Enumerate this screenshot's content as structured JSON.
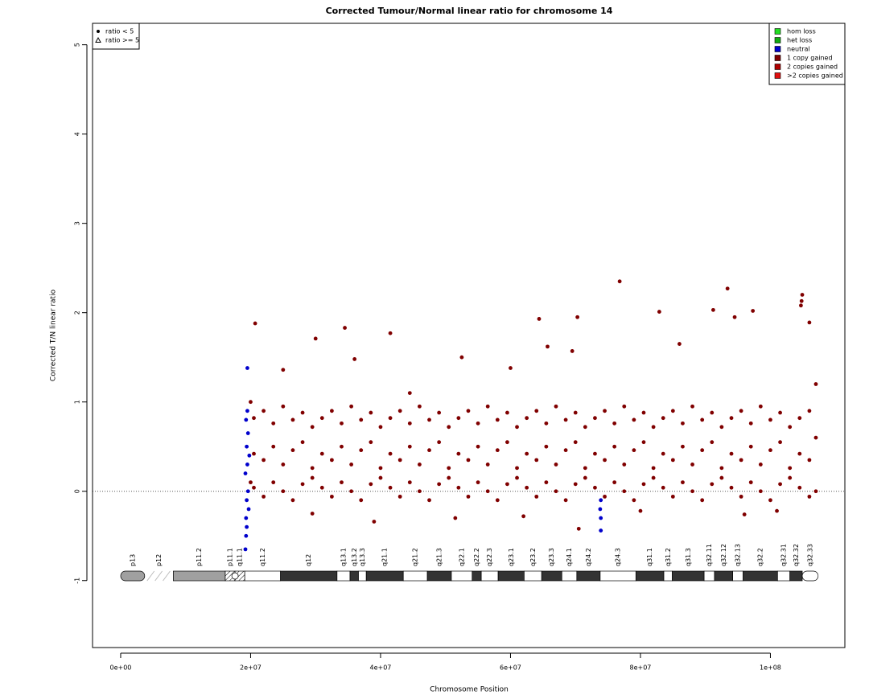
{
  "chart_data": {
    "type": "scatter",
    "title": "Corrected Tumour/Normal linear ratio for chromosome  14",
    "x_label": "Chromosome Position",
    "y_label": "Corrected T/N linear ratio",
    "xlim": [
      -4330000,
      111460000
    ],
    "ylim": [
      -1.75,
      5.24
    ],
    "xticks": [
      {
        "value": 0,
        "label": "0e+00"
      },
      {
        "value": 20000000,
        "label": "2e+07"
      },
      {
        "value": 40000000,
        "label": "4e+07"
      },
      {
        "value": 60000000,
        "label": "6e+07"
      },
      {
        "value": 80000000,
        "label": "8e+07"
      },
      {
        "value": 100000000,
        "label": "1e+08"
      }
    ],
    "yticks": [
      -1,
      0,
      1,
      2,
      3,
      4,
      5
    ],
    "reference_line": 0,
    "markers": [
      {
        "label": "ratio < 5",
        "shape": "circle"
      },
      {
        "label": "ratio >= 5",
        "shape": "triangle"
      }
    ],
    "series": [
      {
        "name": "hom loss",
        "color": "#22dd22",
        "x": [],
        "values": []
      },
      {
        "name": "het loss",
        "color": "#11aa11",
        "x": [],
        "values": []
      },
      {
        "name": "neutral",
        "color": "#0000cc",
        "x": [
          19500000.0,
          19300000.0,
          19400000.0,
          19200000.0,
          19400000.0,
          19300000.0,
          19400000.0,
          19200000.0,
          19600000.0,
          19500000.0,
          19700000.0,
          19600000.0,
          19800000.0,
          19300000.0,
          19500000.0,
          73900000.0,
          73900000.0,
          73800000.0,
          73900000.0
        ],
        "values": [
          1.38,
          0.8,
          0.5,
          0.2,
          -0.1,
          -0.3,
          -0.4,
          -0.65,
          0.65,
          0.3,
          -0.2,
          0,
          0.4,
          -0.5,
          0.9,
          -0.44,
          -0.3,
          -0.2,
          -0.1
        ]
      },
      {
        "name": "1 copy gained",
        "color": "#800000",
        "x": [
          20700000.0,
          30000000.0,
          34500000.0,
          41500000.0,
          44500000.0,
          52500000.0,
          64400000.0,
          70300000.0,
          76800000.0,
          82900000.0,
          91200000.0,
          93400000.0,
          94500000.0,
          97300000.0,
          104900000.0,
          104800000.0,
          104700000.0,
          106000000.0,
          65700000.0,
          69500000.0,
          36000000.0,
          60000000.0,
          25000000.0,
          86000000.0,
          29500000.0,
          39000000.0,
          70500000.0,
          51500000.0,
          62000000.0,
          80000000.0,
          96000000.0,
          101000000.0,
          107000000.0,
          107000000.0,
          107000000.0,
          20000000.0,
          20000000.0,
          20500000.0,
          20500000.0,
          20500000.0,
          22000000.0,
          22000000.0,
          22000000.0,
          23500000.0,
          23500000.0,
          23500000.0,
          25000000.0,
          25000000.0,
          25000000.0,
          26500000.0,
          26500000.0,
          26500000.0,
          28000000.0,
          28000000.0,
          28000000.0,
          29500000.0,
          29500000.0,
          29500000.0,
          31000000.0,
          31000000.0,
          31000000.0,
          32500000.0,
          32500000.0,
          32500000.0,
          34000000.0,
          34000000.0,
          34000000.0,
          35500000.0,
          35500000.0,
          35500000.0,
          37000000.0,
          37000000.0,
          37000000.0,
          38500000.0,
          38500000.0,
          38500000.0,
          40000000.0,
          40000000.0,
          40000000.0,
          41500000.0,
          41500000.0,
          41500000.0,
          43000000.0,
          43000000.0,
          43000000.0,
          44500000.0,
          44500000.0,
          44500000.0,
          46000000.0,
          46000000.0,
          46000000.0,
          47500000.0,
          47500000.0,
          47500000.0,
          49000000.0,
          49000000.0,
          49000000.0,
          50500000.0,
          50500000.0,
          50500000.0,
          52000000.0,
          52000000.0,
          52000000.0,
          53500000.0,
          53500000.0,
          53500000.0,
          55000000.0,
          55000000.0,
          55000000.0,
          56500000.0,
          56500000.0,
          56500000.0,
          58000000.0,
          58000000.0,
          58000000.0,
          59500000.0,
          59500000.0,
          59500000.0,
          61000000.0,
          61000000.0,
          61000000.0,
          62500000.0,
          62500000.0,
          62500000.0,
          64000000.0,
          64000000.0,
          64000000.0,
          65500000.0,
          65500000.0,
          65500000.0,
          67000000.0,
          67000000.0,
          67000000.0,
          68500000.0,
          68500000.0,
          68500000.0,
          70000000.0,
          70000000.0,
          70000000.0,
          71500000.0,
          71500000.0,
          71500000.0,
          73000000.0,
          73000000.0,
          73000000.0,
          74500000.0,
          74500000.0,
          74500000.0,
          76000000.0,
          76000000.0,
          76000000.0,
          77500000.0,
          77500000.0,
          77500000.0,
          79000000.0,
          79000000.0,
          79000000.0,
          80500000.0,
          80500000.0,
          80500000.0,
          82000000.0,
          82000000.0,
          82000000.0,
          83500000.0,
          83500000.0,
          83500000.0,
          85000000.0,
          85000000.0,
          85000000.0,
          86500000.0,
          86500000.0,
          86500000.0,
          88000000.0,
          88000000.0,
          88000000.0,
          89500000.0,
          89500000.0,
          89500000.0,
          91000000.0,
          91000000.0,
          91000000.0,
          92500000.0,
          92500000.0,
          92500000.0,
          94000000.0,
          94000000.0,
          94000000.0,
          95500000.0,
          95500000.0,
          95500000.0,
          97000000.0,
          97000000.0,
          97000000.0,
          98500000.0,
          98500000.0,
          98500000.0,
          100000000.0,
          100000000.0,
          100000000.0,
          101500000.0,
          101500000.0,
          101500000.0,
          103000000.0,
          103000000.0,
          103000000.0,
          104500000.0,
          104500000.0,
          104500000.0,
          106000000.0,
          106000000.0,
          106000000.0
        ],
        "values": [
          1.88,
          1.71,
          1.83,
          1.77,
          1.1,
          1.5,
          1.93,
          1.95,
          2.35,
          2.01,
          2.03,
          2.27,
          1.95,
          2.02,
          2.2,
          2.13,
          2.08,
          1.89,
          1.62,
          1.57,
          1.48,
          1.38,
          1.36,
          1.65,
          -0.25,
          -0.34,
          -0.42,
          -0.3,
          -0.28,
          -0.22,
          -0.26,
          -0.22,
          1.2,
          0,
          0.6,
          1.0,
          0.1,
          0.82,
          0.42,
          0.04,
          0.9,
          0.35,
          -0.06,
          0.76,
          0.5,
          0.1,
          0.95,
          0.3,
          0,
          0.8,
          0.46,
          -0.1,
          0.88,
          0.55,
          0.08,
          0.72,
          0.26,
          0.15,
          0.82,
          0.42,
          0.04,
          0.9,
          0.35,
          -0.06,
          0.76,
          0.5,
          0.1,
          0.95,
          0.3,
          0,
          0.8,
          0.46,
          -0.1,
          0.88,
          0.55,
          0.08,
          0.72,
          0.26,
          0.15,
          0.82,
          0.42,
          0.04,
          0.9,
          0.35,
          -0.06,
          0.76,
          0.5,
          0.1,
          0.95,
          0.3,
          0,
          0.8,
          0.46,
          -0.1,
          0.88,
          0.55,
          0.08,
          0.72,
          0.26,
          0.15,
          0.82,
          0.42,
          0.04,
          0.9,
          0.35,
          -0.06,
          0.76,
          0.5,
          0.1,
          0.95,
          0.3,
          0,
          0.8,
          0.46,
          -0.1,
          0.88,
          0.55,
          0.08,
          0.72,
          0.26,
          0.15,
          0.82,
          0.42,
          0.04,
          0.9,
          0.35,
          -0.06,
          0.76,
          0.5,
          0.1,
          0.95,
          0.3,
          0,
          0.8,
          0.46,
          -0.1,
          0.88,
          0.55,
          0.08,
          0.72,
          0.26,
          0.15,
          0.82,
          0.42,
          0.04,
          0.9,
          0.35,
          -0.06,
          0.76,
          0.5,
          0.1,
          0.95,
          0.3,
          0,
          0.8,
          0.46,
          -0.1,
          0.88,
          0.55,
          0.08,
          0.72,
          0.26,
          0.15,
          0.82,
          0.42,
          0.04,
          0.9,
          0.35,
          -0.06,
          0.76,
          0.5,
          0.1,
          0.95,
          0.3,
          0,
          0.8,
          0.46,
          -0.1,
          0.88,
          0.55,
          0.08,
          0.72,
          0.26,
          0.15,
          0.82,
          0.42,
          0.04,
          0.9,
          0.35,
          -0.06,
          0.76,
          0.5,
          0.1,
          0.95,
          0.3,
          0,
          0.8,
          0.46,
          -0.1,
          0.88,
          0.55,
          0.08,
          0.72,
          0.26,
          0.15,
          0.82,
          0.42,
          0.04,
          0.9,
          0.35,
          -0.06
        ]
      },
      {
        "name": "2 copies gained",
        "color": "#b00000",
        "x": [],
        "values": []
      },
      {
        "name": ">2 copies gained",
        "color": "#e01010",
        "x": [],
        "values": []
      }
    ],
    "ideogram": {
      "bands": [
        {
          "label": "p13",
          "start": 0,
          "end": 3700000,
          "stain": "gvar"
        },
        {
          "label": "p12",
          "start": 3700000,
          "end": 8100000,
          "stain": "stalk"
        },
        {
          "label": "p11.2",
          "start": 8100000,
          "end": 16100000,
          "stain": "gvar"
        },
        {
          "label": "p11.1",
          "start": 16100000,
          "end": 17600000,
          "stain": "acen"
        },
        {
          "label": "q11.1",
          "start": 17600000,
          "end": 19100000,
          "stain": "acen"
        },
        {
          "label": "q11.2",
          "start": 19100000,
          "end": 24600000,
          "stain": "gneg"
        },
        {
          "label": "q12",
          "start": 24600000,
          "end": 33300000,
          "stain": "gpos"
        },
        {
          "label": "q13.1",
          "start": 33300000,
          "end": 35300000,
          "stain": "gneg"
        },
        {
          "label": "q13.2",
          "start": 35300000,
          "end": 36600000,
          "stain": "gpos"
        },
        {
          "label": "q13.3",
          "start": 36600000,
          "end": 37800000,
          "stain": "gneg"
        },
        {
          "label": "q21.1",
          "start": 37800000,
          "end": 43500000,
          "stain": "gpos"
        },
        {
          "label": "q21.2",
          "start": 43500000,
          "end": 47200000,
          "stain": "gneg"
        },
        {
          "label": "q21.3",
          "start": 47200000,
          "end": 50900000,
          "stain": "gpos"
        },
        {
          "label": "q22.1",
          "start": 50900000,
          "end": 54100000,
          "stain": "gneg"
        },
        {
          "label": "q22.2",
          "start": 54100000,
          "end": 55500000,
          "stain": "gpos"
        },
        {
          "label": "q22.3",
          "start": 55500000,
          "end": 58100000,
          "stain": "gneg"
        },
        {
          "label": "q23.1",
          "start": 58100000,
          "end": 62100000,
          "stain": "gpos"
        },
        {
          "label": "q23.2",
          "start": 62100000,
          "end": 64800000,
          "stain": "gneg"
        },
        {
          "label": "q23.3",
          "start": 64800000,
          "end": 67900000,
          "stain": "gpos"
        },
        {
          "label": "q24.1",
          "start": 67900000,
          "end": 70200000,
          "stain": "gneg"
        },
        {
          "label": "q24.2",
          "start": 70200000,
          "end": 73800000,
          "stain": "gpos"
        },
        {
          "label": "q24.3",
          "start": 73800000,
          "end": 79300000,
          "stain": "gneg"
        },
        {
          "label": "q31.1",
          "start": 79300000,
          "end": 83600000,
          "stain": "gpos"
        },
        {
          "label": "q31.2",
          "start": 83600000,
          "end": 84900000,
          "stain": "gneg"
        },
        {
          "label": "q31.3",
          "start": 84900000,
          "end": 89800000,
          "stain": "gpos"
        },
        {
          "label": "q32.11",
          "start": 89800000,
          "end": 91400000,
          "stain": "gneg"
        },
        {
          "label": "q32.12",
          "start": 91400000,
          "end": 94200000,
          "stain": "gpos"
        },
        {
          "label": "q32.13",
          "start": 94200000,
          "end": 95800000,
          "stain": "gneg"
        },
        {
          "label": "q32.2",
          "start": 95800000,
          "end": 101100000,
          "stain": "gpos"
        },
        {
          "label": "q32.31",
          "start": 101100000,
          "end": 103000000,
          "stain": "gneg"
        },
        {
          "label": "q32.32",
          "start": 103000000,
          "end": 104900000,
          "stain": "gpos"
        },
        {
          "label": "q32.33",
          "start": 104900000,
          "end": 107350000,
          "stain": "gneg"
        }
      ]
    }
  }
}
